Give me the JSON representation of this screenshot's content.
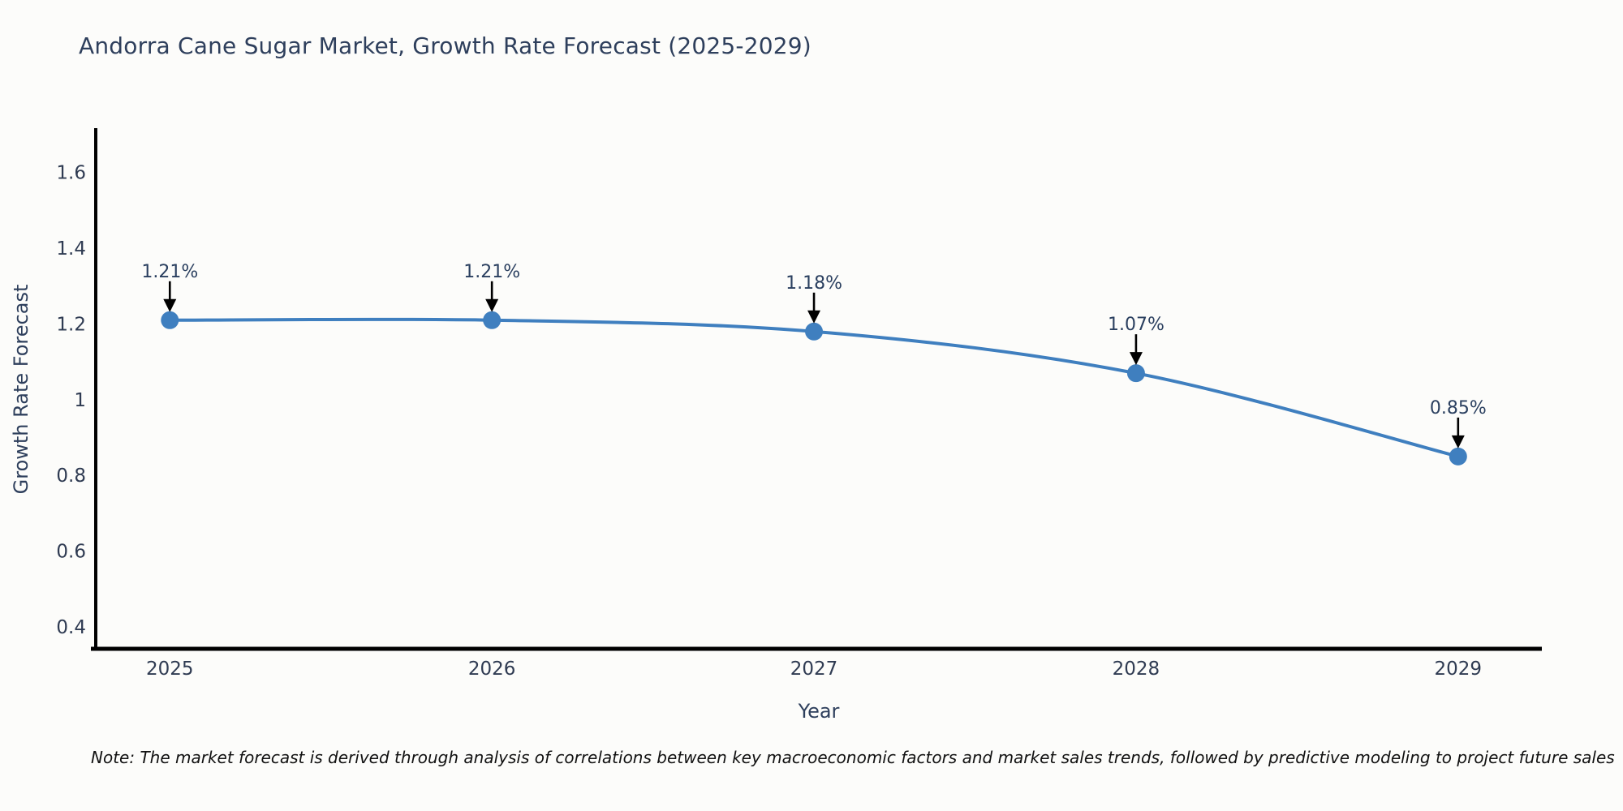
{
  "title": "Andorra Cane Sugar Market, Growth Rate Forecast (2025-2029)",
  "note": "Note: The market forecast is derived through analysis of correlations between key macroeconomic factors and market sales trends, followed by predictive modeling to project future sales",
  "chart_data": {
    "type": "line",
    "title": "Andorra Cane Sugar Market, Growth Rate Forecast (2025-2029)",
    "x": [
      2025,
      2026,
      2027,
      2028,
      2029
    ],
    "values": [
      1.21,
      1.21,
      1.18,
      1.07,
      0.85
    ],
    "point_labels": [
      "1.21%",
      "1.21%",
      "1.18%",
      "1.07%",
      "0.85%"
    ],
    "xlabel": "Year",
    "ylabel": "Growth Rate Forecast",
    "yticks": [
      1.6,
      1.4,
      1.2,
      1,
      0.8,
      0.6,
      0.4
    ],
    "ytick_labels": [
      "1.6",
      "1.4",
      "1.2",
      "1",
      "0.8",
      "0.6",
      "0.4"
    ],
    "xtick_labels": [
      "2025",
      "2026",
      "2027",
      "2028",
      "2029"
    ],
    "ylim": [
      0.342,
      1.713
    ],
    "xlim": [
      2024.77,
      2029.26
    ],
    "grid": false,
    "legend": false,
    "line_shape": "spline",
    "line_color": "#3f7fbf",
    "marker_color": "#3f7fbf",
    "arrow_color": "#000000",
    "axis_line_color": "#000000",
    "tick_color": "#2f3b52",
    "annotation_color": "#2a3f5f"
  }
}
